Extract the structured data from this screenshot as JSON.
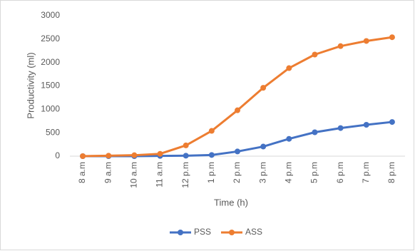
{
  "chart_data": {
    "type": "line",
    "categories": [
      "8 a.m",
      "9 a.m",
      "10 a.m",
      "11 a.m",
      "12 p.m",
      "1 p.m",
      "2 p.m",
      "3 p.m",
      "4 p.m",
      "5 p.m",
      "6 p.m",
      "7 p.m",
      "8 p.m"
    ],
    "series": [
      {
        "name": "PSS",
        "color": "#4472c4",
        "values": [
          0,
          0,
          0,
          5,
          10,
          25,
          100,
          205,
          370,
          510,
          600,
          670,
          730
        ]
      },
      {
        "name": "ASS",
        "color": "#ed7d31",
        "values": [
          0,
          10,
          20,
          50,
          230,
          540,
          980,
          1460,
          1880,
          2170,
          2350,
          2460,
          2540
        ]
      }
    ],
    "x_label": "Time (h)",
    "y_label": "Productivity (ml)",
    "ylim": [
      0,
      3000
    ],
    "yticks": [
      0,
      500,
      1000,
      1500,
      2000,
      2500,
      3000
    ],
    "grid": false,
    "legend": "bottom"
  }
}
